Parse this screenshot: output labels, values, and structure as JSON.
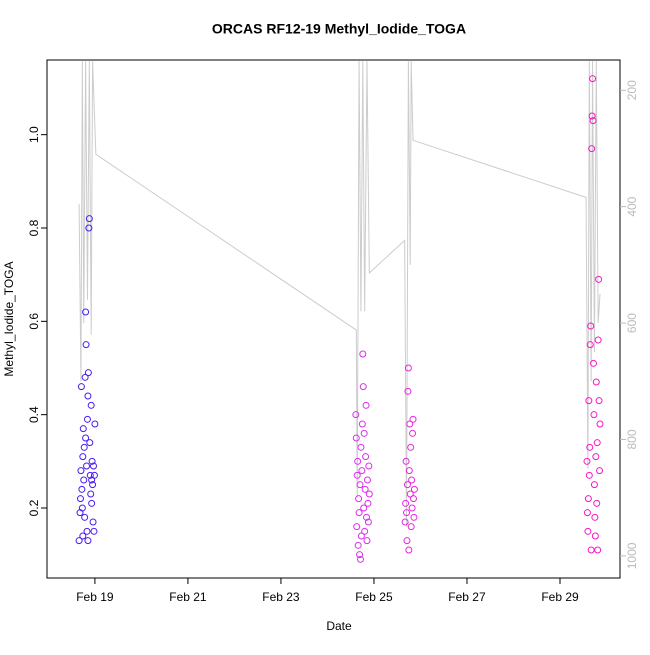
{
  "chart_data": {
    "type": "scatter",
    "title": "ORCAS RF12-19 Methyl_Iodide_TOGA",
    "x_label": "Date",
    "y_label": "Methyl_Iodide_TOGA",
    "xlim": [
      17.97,
      30.29
    ],
    "xticks": [
      {
        "value": 19,
        "label": "Feb 19"
      },
      {
        "value": 21,
        "label": "Feb 21"
      },
      {
        "value": 23,
        "label": "Feb 23"
      },
      {
        "value": 25,
        "label": "Feb 25"
      },
      {
        "value": 27,
        "label": "Feb 27"
      },
      {
        "value": 29,
        "label": "Feb 29"
      }
    ],
    "ylim": [
      0.05,
      1.16
    ],
    "yticks": [
      0.2,
      0.4,
      0.6,
      0.8,
      {
        "value": 1,
        "label": "1.0"
      }
    ],
    "y2lim": [
      1038,
      148
    ],
    "y2ticks": [
      200,
      400,
      600,
      800,
      1000
    ],
    "series": [
      {
        "color": "#4a1cf2",
        "x": [
          18.66,
          18.68,
          18.69,
          18.7,
          18.71,
          18.72,
          18.73,
          18.74,
          18.75,
          18.76,
          18.77,
          18.78,
          18.79,
          18.8,
          18.81,
          18.82,
          18.83,
          18.84,
          18.85,
          18.86,
          18.87,
          18.88,
          18.89,
          18.9,
          18.91,
          18.92,
          18.93,
          18.94,
          18.95,
          18.96,
          18.97,
          18.98,
          18.99,
          19.0,
          18.74,
          18.8,
          18.85,
          18.93
        ],
        "values": [
          0.13,
          0.19,
          0.22,
          0.28,
          0.46,
          0.24,
          0.2,
          0.31,
          0.37,
          0.26,
          0.33,
          0.18,
          0.48,
          0.62,
          0.55,
          0.29,
          0.15,
          0.39,
          0.44,
          0.49,
          0.8,
          0.82,
          0.34,
          0.27,
          0.23,
          0.42,
          0.21,
          0.3,
          0.25,
          0.17,
          0.29,
          0.15,
          0.27,
          0.38,
          0.14,
          0.35,
          0.13,
          0.26
        ]
      },
      {
        "color": "#dc2ef0",
        "x": [
          24.61,
          24.62,
          24.63,
          24.64,
          24.65,
          24.66,
          24.67,
          24.68,
          24.69,
          24.7,
          24.71,
          24.72,
          24.73,
          24.74,
          24.75,
          24.76,
          24.77,
          24.78,
          24.79,
          24.8,
          24.81,
          24.82,
          24.83,
          24.84,
          24.85,
          24.86,
          24.87,
          24.88,
          24.89,
          24.9
        ],
        "values": [
          0.4,
          0.35,
          0.16,
          0.27,
          0.3,
          0.12,
          0.22,
          0.19,
          0.1,
          0.25,
          0.09,
          0.33,
          0.14,
          0.28,
          0.38,
          0.53,
          0.46,
          0.2,
          0.36,
          0.15,
          0.24,
          0.31,
          0.42,
          0.18,
          0.13,
          0.26,
          0.21,
          0.17,
          0.29,
          0.23
        ]
      },
      {
        "color": "#e826e0",
        "x": [
          25.67,
          25.68,
          25.69,
          25.7,
          25.71,
          25.72,
          25.73,
          25.74,
          25.75,
          25.76,
          25.77,
          25.78,
          25.79,
          25.8,
          25.81,
          25.82,
          25.83,
          25.84,
          25.85,
          25.86,
          25.87
        ],
        "values": [
          0.17,
          0.21,
          0.3,
          0.19,
          0.13,
          0.25,
          0.45,
          0.5,
          0.11,
          0.28,
          0.38,
          0.23,
          0.33,
          0.16,
          0.26,
          0.2,
          0.36,
          0.39,
          0.22,
          0.18,
          0.24
        ]
      },
      {
        "color": "#fa18c4",
        "x": [
          29.58,
          29.59,
          29.6,
          29.61,
          29.62,
          29.63,
          29.64,
          29.65,
          29.66,
          29.67,
          29.68,
          29.69,
          29.7,
          29.71,
          29.72,
          29.73,
          29.74,
          29.75,
          29.76,
          29.77,
          29.78,
          29.79,
          29.8,
          29.81,
          29.82,
          29.83,
          29.84,
          29.85,
          29.86
        ],
        "values": [
          0.3,
          0.19,
          0.15,
          0.22,
          0.43,
          0.27,
          0.33,
          0.55,
          0.59,
          0.11,
          0.97,
          1.04,
          1.12,
          1.03,
          0.51,
          0.4,
          0.25,
          0.18,
          0.14,
          0.31,
          0.47,
          0.21,
          0.34,
          0.11,
          0.56,
          0.69,
          0.43,
          0.28,
          0.38
        ]
      },
      {
        "type": "line",
        "axis": "y2",
        "color": "#cccccc",
        "x": [
          18.66,
          18.7,
          18.73,
          18.76,
          18.8,
          18.84,
          18.88,
          18.92,
          18.95,
          19.02,
          24.62,
          24.64,
          24.68,
          24.72,
          24.76,
          24.8,
          24.85,
          24.9,
          25.66,
          25.7,
          25.74,
          25.78,
          25.8,
          25.84,
          29.56,
          29.6,
          29.63,
          29.67,
          29.7,
          29.74,
          29.78,
          29.82,
          29.86
        ],
        "values": [
          395,
          700,
          150,
          600,
          150,
          560,
          150,
          620,
          150,
          310,
          612,
          900,
          150,
          580,
          150,
          580,
          150,
          514,
          458,
          950,
          150,
          500,
          150,
          286,
          384,
          850,
          150,
          700,
          150,
          650,
          150,
          600,
          550
        ]
      }
    ]
  }
}
